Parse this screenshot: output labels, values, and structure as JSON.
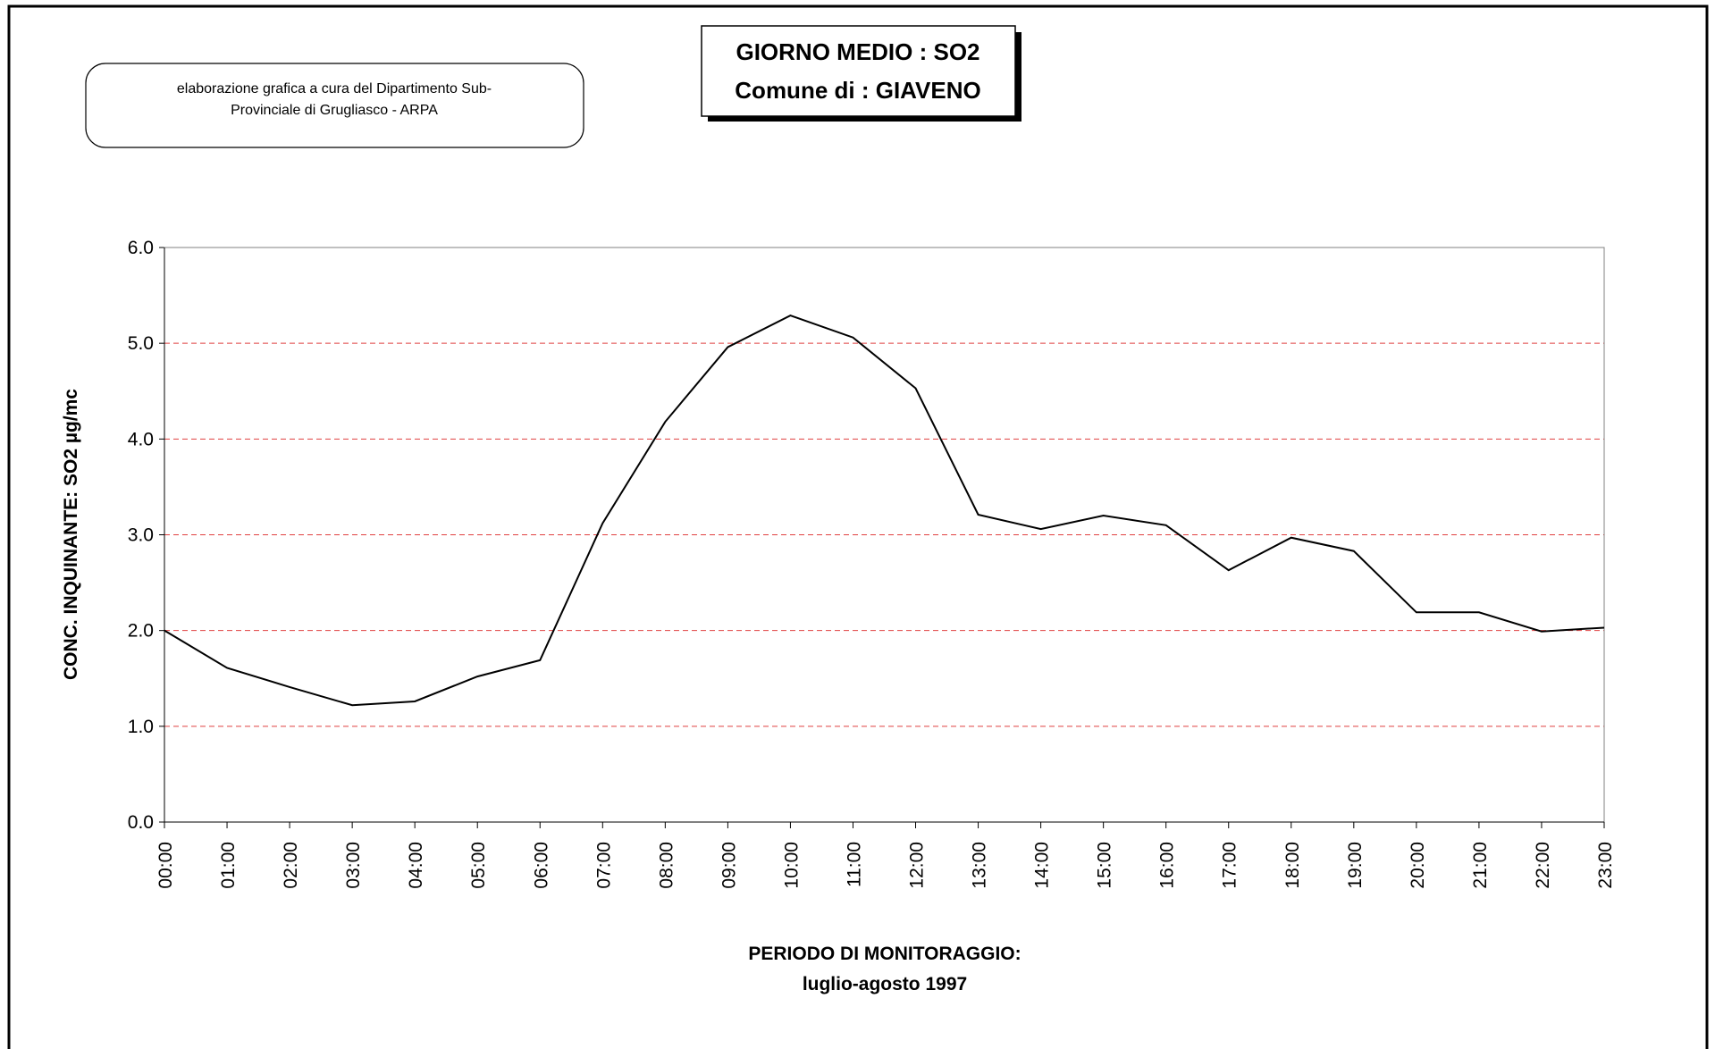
{
  "chart_data": {
    "type": "line",
    "title": [
      "GIORNO MEDIO : SO2",
      "Comune di : GIAVENO"
    ],
    "note": [
      "elaborazione grafica a cura del Dipartimento Sub-",
      "Provinciale di Grugliasco - ARPA"
    ],
    "y_label": "CONC. INQUINANTE: SO2 µg/mc",
    "x_label": [
      "PERIODO DI MONITORAGGIO:",
      "luglio-agosto 1997"
    ],
    "categories": [
      "00:00",
      "01:00",
      "02:00",
      "03:00",
      "04:00",
      "05:00",
      "06:00",
      "07:00",
      "08:00",
      "09:00",
      "10:00",
      "11:00",
      "12:00",
      "13:00",
      "14:00",
      "15:00",
      "16:00",
      "17:00",
      "18:00",
      "19:00",
      "20:00",
      "21:00",
      "22:00",
      "23:00"
    ],
    "series": [
      {
        "color": "#000000",
        "values": [
          2.0,
          1.61,
          1.41,
          1.22,
          1.26,
          1.52,
          1.69,
          3.12,
          4.18,
          4.96,
          5.29,
          5.06,
          4.53,
          3.21,
          3.06,
          3.2,
          3.1,
          2.63,
          2.97,
          2.83,
          2.19,
          2.19,
          1.99,
          2.03
        ]
      }
    ],
    "ylim": [
      0,
      6
    ],
    "yticks": [
      {
        "value": 0,
        "label": "0.0"
      },
      {
        "value": 1,
        "label": "1.0"
      },
      {
        "value": 2,
        "label": "2.0"
      },
      {
        "value": 3,
        "label": "3.0"
      },
      {
        "value": 4,
        "label": "4.0"
      },
      {
        "value": 5,
        "label": "5.0"
      },
      {
        "value": 6,
        "label": "6.0"
      }
    ],
    "grid": true,
    "grid_color": "#e04040"
  }
}
